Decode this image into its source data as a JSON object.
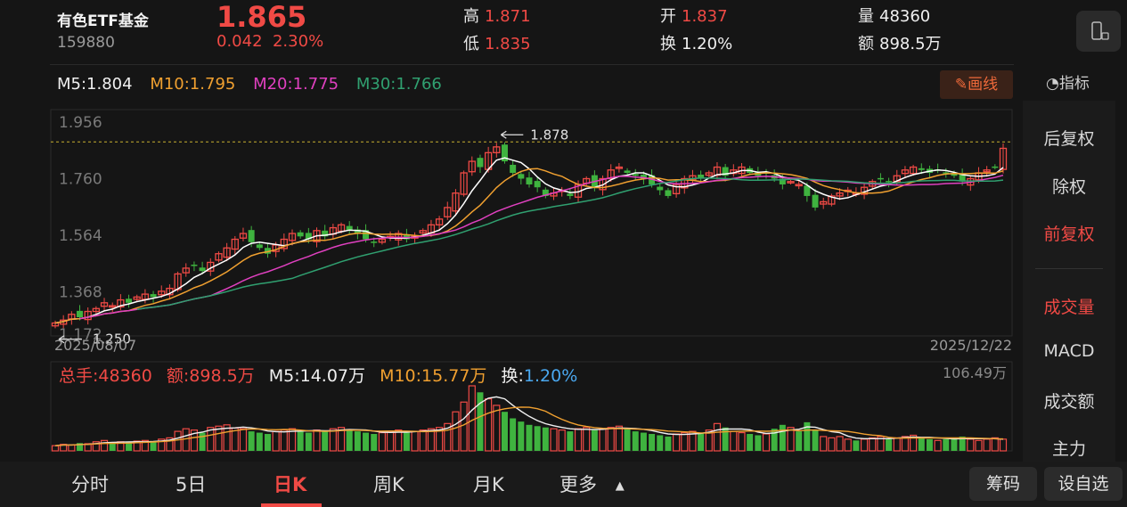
{
  "header": {
    "name": "有色ETF基金",
    "code": "159880",
    "price": "1.865",
    "change": "0.042",
    "change_pct": "2.30%",
    "high_label": "高",
    "high": "1.871",
    "low_label": "低",
    "low": "1.835",
    "open_label": "开",
    "open": "1.837",
    "turnover_label": "换",
    "turnover": "1.20%",
    "volume_label": "量",
    "volume": "48360",
    "amount_label": "额",
    "amount": "898.5万"
  },
  "ma": {
    "m5": "M5:1.804",
    "m10": "M10:1.795",
    "m20": "M20:1.775",
    "m30": "M30:1.766"
  },
  "toolbar": {
    "draw_label": "画线",
    "indicator_label": "指标"
  },
  "sidebar": {
    "items": [
      "后复权",
      "除权",
      "前复权",
      "成交量",
      "MACD",
      "成交额",
      "主力"
    ]
  },
  "volume_info": {
    "total": "总手:48360",
    "amount": "额:898.5万",
    "m5": "M5:14.07万",
    "m10": "M10:15.77万",
    "turnover_label": "换:",
    "turnover": "1.20%"
  },
  "bottom_nav": {
    "tabs": [
      "分时",
      "5日",
      "日K",
      "周K",
      "月K",
      "更多"
    ],
    "chips_label": "筹码",
    "watchlist_label": "设自选"
  },
  "chart_data": {
    "type": "candlestick",
    "y_ticks": [
      "1.956",
      "1.760",
      "1.564",
      "1.368",
      "1.172"
    ],
    "ylim": [
      1.172,
      1.956
    ],
    "x_start": "2025/08/07",
    "x_end": "2025/12/22",
    "max_annotation": "1.878",
    "min_annotation": "1.250",
    "vol_max_label": "106.49万",
    "colors": {
      "up": "#f04a45",
      "down": "#3fb33f",
      "m5": "#ffffff",
      "m10": "#f0a030",
      "m20": "#e040c0",
      "m30": "#30a070"
    },
    "closes": [
      1.26,
      1.27,
      1.29,
      1.28,
      1.3,
      1.31,
      1.33,
      1.32,
      1.34,
      1.33,
      1.35,
      1.36,
      1.35,
      1.37,
      1.38,
      1.43,
      1.45,
      1.46,
      1.44,
      1.47,
      1.5,
      1.52,
      1.55,
      1.57,
      1.54,
      1.52,
      1.5,
      1.53,
      1.55,
      1.57,
      1.56,
      1.55,
      1.58,
      1.56,
      1.59,
      1.6,
      1.58,
      1.57,
      1.55,
      1.54,
      1.55,
      1.56,
      1.57,
      1.55,
      1.56,
      1.58,
      1.6,
      1.62,
      1.66,
      1.71,
      1.78,
      1.82,
      1.8,
      1.85,
      1.87,
      1.82,
      1.78,
      1.76,
      1.74,
      1.73,
      1.7,
      1.71,
      1.72,
      1.7,
      1.74,
      1.76,
      1.73,
      1.76,
      1.79,
      1.8,
      1.78,
      1.77,
      1.76,
      1.74,
      1.72,
      1.7,
      1.74,
      1.76,
      1.77,
      1.76,
      1.78,
      1.8,
      1.77,
      1.79,
      1.8,
      1.78,
      1.77,
      1.78,
      1.76,
      1.74,
      1.75,
      1.74,
      1.7,
      1.66,
      1.68,
      1.7,
      1.71,
      1.72,
      1.71,
      1.73,
      1.75,
      1.76,
      1.75,
      1.77,
      1.79,
      1.8,
      1.79,
      1.78,
      1.79,
      1.78,
      1.77,
      1.75,
      1.76,
      1.78,
      1.79,
      1.8,
      1.865
    ],
    "volumes": [
      8,
      10,
      9,
      12,
      11,
      14,
      16,
      12,
      14,
      13,
      15,
      16,
      14,
      18,
      20,
      30,
      34,
      32,
      28,
      36,
      38,
      40,
      35,
      34,
      30,
      28,
      26,
      30,
      32,
      34,
      30,
      28,
      32,
      30,
      34,
      36,
      32,
      30,
      28,
      26,
      28,
      30,
      32,
      28,
      30,
      32,
      34,
      36,
      42,
      60,
      75,
      100,
      90,
      80,
      70,
      60,
      50,
      45,
      40,
      38,
      36,
      34,
      32,
      30,
      34,
      36,
      32,
      34,
      36,
      38,
      34,
      30,
      28,
      26,
      24,
      22,
      26,
      28,
      30,
      28,
      32,
      42,
      36,
      30,
      28,
      26,
      24,
      26,
      34,
      40,
      36,
      30,
      44,
      32,
      22,
      20,
      22,
      18,
      16,
      18,
      20,
      22,
      18,
      20,
      22,
      24,
      20,
      18,
      16,
      18,
      20,
      22,
      18,
      16,
      18,
      20,
      18
    ]
  }
}
